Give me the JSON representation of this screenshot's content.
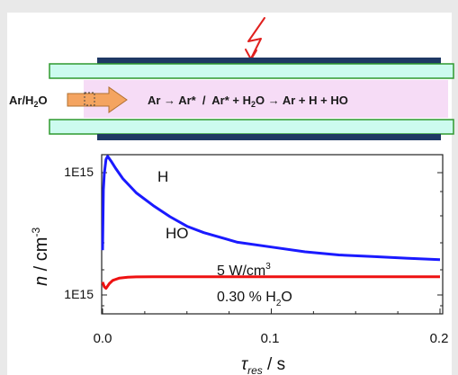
{
  "scheme": {
    "inlet_label": "Ar/H2O",
    "inlet_main": "Ar/H",
    "inlet_sub": "2",
    "inlet_end": "O",
    "reaction_full": "Ar → Ar* / Ar* + H2O → Ar + H + HO",
    "reaction_part1": "Ar → Ar*  /  Ar* + H",
    "reaction_sub": "2",
    "reaction_part2": "O → Ar + H + HO",
    "colors": {
      "tube": "#ccfbef",
      "tube_border": "#2f9a2f",
      "electrode": "#1f3864",
      "plasma": "#f6dcf6",
      "arrow": "#f4a460",
      "lightning": "#e0201e"
    },
    "icons": [
      "lightning-bolt-icon",
      "flow-arrow-icon"
    ]
  },
  "chart_data": {
    "type": "line",
    "title": "",
    "xlabel": "τres / s",
    "xlabel_main": "τ",
    "xlabel_sub": "res",
    "xlabel_unit": " / s",
    "ylabel": "n / cm-3",
    "ylabel_main": "n",
    "ylabel_unit": " / cm",
    "ylabel_sup": "-3",
    "xlim": [
      0.0,
      0.2
    ],
    "x_ticks": [
      "0.0",
      "0.1",
      "0.2"
    ],
    "x_tick_values": [
      0.0,
      0.1,
      0.2
    ],
    "y_tick_labels": [
      "1E15",
      "1E15"
    ],
    "grid": false,
    "series": [
      {
        "name": "H",
        "color": "#1a1aff",
        "x": [
          0.0,
          0.0005,
          0.001,
          0.002,
          0.003,
          0.005,
          0.008,
          0.012,
          0.02,
          0.03,
          0.04,
          0.05,
          0.06,
          0.08,
          0.1,
          0.12,
          0.14,
          0.16,
          0.18,
          0.2
        ],
        "y": [
          0.4,
          0.78,
          0.88,
          0.97,
          0.99,
          0.96,
          0.91,
          0.85,
          0.76,
          0.68,
          0.61,
          0.55,
          0.51,
          0.45,
          0.42,
          0.39,
          0.37,
          0.36,
          0.35,
          0.34
        ]
      },
      {
        "name": "HO",
        "color": "#ee1111",
        "x": [
          0.0,
          0.001,
          0.002,
          0.004,
          0.006,
          0.01,
          0.015,
          0.02,
          0.03,
          0.05,
          0.1,
          0.15,
          0.2
        ],
        "y": [
          0.2,
          0.17,
          0.16,
          0.19,
          0.21,
          0.225,
          0.23,
          0.232,
          0.233,
          0.233,
          0.233,
          0.233,
          0.233
        ]
      }
    ],
    "annotations": {
      "power_main": "5 W/cm",
      "power_sup": "3",
      "conc_main": "0.30 % H",
      "conc_sub": "2",
      "conc_end": "O"
    }
  }
}
